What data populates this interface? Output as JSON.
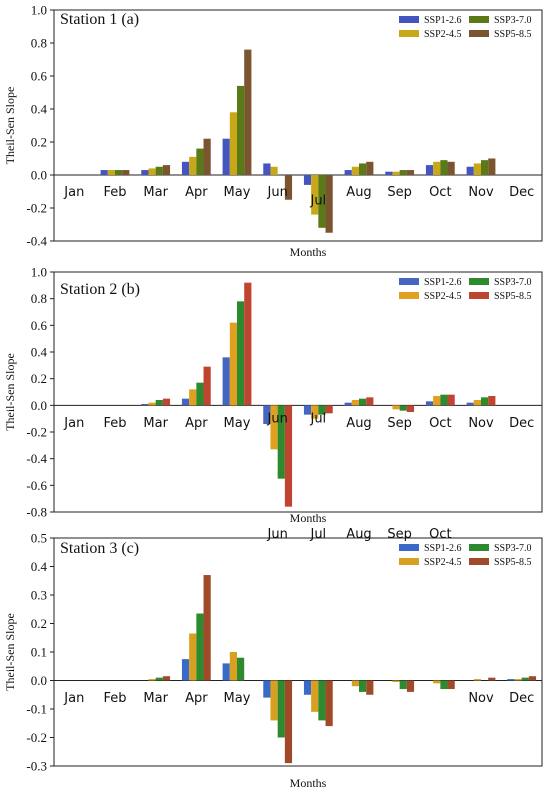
{
  "chart_data": [
    {
      "type": "bar",
      "title": "Station 1 (a)",
      "xlabel": "Months",
      "ylabel": "Theil-Sen Slope",
      "ylim": [
        -0.4,
        1.0
      ],
      "yticks": [
        "-0.4",
        "-0.2",
        "0.0",
        "0.2",
        "0.4",
        "0.6",
        "0.8",
        "1.0"
      ],
      "categories": [
        "Jan",
        "Feb",
        "Mar",
        "Apr",
        "May",
        "Jun",
        "Jul",
        "Aug",
        "Sep",
        "Oct",
        "Nov",
        "Dec"
      ],
      "legend_position": "top-right",
      "series": [
        {
          "name": "SSP1-2.6",
          "color": "#4455c0",
          "values": [
            0,
            0.03,
            0.03,
            0.08,
            0.22,
            0.07,
            -0.06,
            0.03,
            0.02,
            0.06,
            0.05,
            0.0
          ]
        },
        {
          "name": "SSP2-4.5",
          "color": "#c8a818",
          "values": [
            0,
            0.03,
            0.04,
            0.11,
            0.38,
            0.05,
            -0.24,
            0.05,
            0.02,
            0.08,
            0.07,
            0.0
          ]
        },
        {
          "name": "SSP3-7.0",
          "color": "#5a7a18",
          "values": [
            0,
            0.03,
            0.05,
            0.16,
            0.54,
            0.0,
            -0.32,
            0.07,
            0.03,
            0.09,
            0.09,
            0.0
          ]
        },
        {
          "name": "SSP5-8.5",
          "color": "#7a5530",
          "values": [
            0,
            0.03,
            0.06,
            0.22,
            0.76,
            -0.15,
            -0.35,
            0.08,
            0.03,
            0.08,
            0.1,
            0.0
          ]
        }
      ]
    },
    {
      "type": "bar",
      "title": "Station 2 (b)",
      "xlabel": "Months",
      "ylabel": "Theil-Sen Slope",
      "ylim": [
        -0.8,
        1.0
      ],
      "yticks": [
        "-0.8",
        "-0.6",
        "-0.4",
        "-0.2",
        "0.0",
        "0.2",
        "0.4",
        "0.6",
        "0.8",
        "1.0"
      ],
      "categories": [
        "Jan",
        "Feb",
        "Mar",
        "Apr",
        "May",
        "Jun",
        "Jul",
        "Aug",
        "Sep",
        "Oct",
        "Nov",
        "Dec"
      ],
      "legend_position": "top-right",
      "series": [
        {
          "name": "SSP1-2.6",
          "color": "#4466c0",
          "values": [
            0,
            0,
            0.01,
            0.05,
            0.36,
            -0.14,
            -0.07,
            0.02,
            0.0,
            0.03,
            0.02,
            0.0
          ]
        },
        {
          "name": "SSP2-4.5",
          "color": "#e0a020",
          "values": [
            0,
            0,
            0.02,
            0.12,
            0.62,
            -0.33,
            -0.1,
            0.04,
            -0.03,
            0.07,
            0.04,
            0.0
          ]
        },
        {
          "name": "SSP3-7.0",
          "color": "#2e8a2e",
          "values": [
            0,
            0,
            0.04,
            0.17,
            0.78,
            -0.55,
            -0.07,
            0.05,
            -0.04,
            0.08,
            0.06,
            0.0
          ]
        },
        {
          "name": "SSP5-8.5",
          "color": "#c04530",
          "values": [
            0,
            0,
            0.05,
            0.29,
            0.92,
            -0.76,
            -0.06,
            0.06,
            -0.05,
            0.08,
            0.07,
            0.0
          ]
        }
      ]
    },
    {
      "type": "bar",
      "title": "Station 3 (c)",
      "xlabel": "Months",
      "ylabel": "Theil-Sen Slope",
      "ylim": [
        -0.3,
        0.5
      ],
      "yticks": [
        "-0.3",
        "-0.2",
        "-0.1",
        "0.0",
        "0.1",
        "0.2",
        "0.3",
        "0.4",
        "0.5"
      ],
      "categories": [
        "Jan",
        "Feb",
        "Mar",
        "Apr",
        "May",
        "Jun",
        "Jul",
        "Aug",
        "Sep",
        "Oct",
        "Nov",
        "Dec"
      ],
      "legend_position": "top-right",
      "series": [
        {
          "name": "SSP1-2.6",
          "color": "#3a6ac8",
          "values": [
            0,
            0,
            0.0,
            0.075,
            0.06,
            -0.06,
            -0.05,
            0.0,
            0.0,
            0.0,
            0.0,
            0.005
          ]
        },
        {
          "name": "SSP2-4.5",
          "color": "#d8a020",
          "values": [
            0,
            0,
            0.005,
            0.165,
            0.1,
            -0.14,
            -0.11,
            -0.02,
            -0.005,
            -0.01,
            0.005,
            0.005
          ]
        },
        {
          "name": "SSP3-7.0",
          "color": "#2e8a2e",
          "values": [
            0,
            0,
            0.01,
            0.235,
            0.08,
            -0.2,
            -0.14,
            -0.04,
            -0.03,
            -0.03,
            0.0,
            0.01
          ]
        },
        {
          "name": "SSP5-8.5",
          "color": "#a04a2a",
          "values": [
            0,
            0,
            0.015,
            0.37,
            0.0,
            -0.29,
            -0.16,
            -0.05,
            -0.04,
            -0.03,
            0.01,
            0.015
          ]
        }
      ]
    }
  ]
}
